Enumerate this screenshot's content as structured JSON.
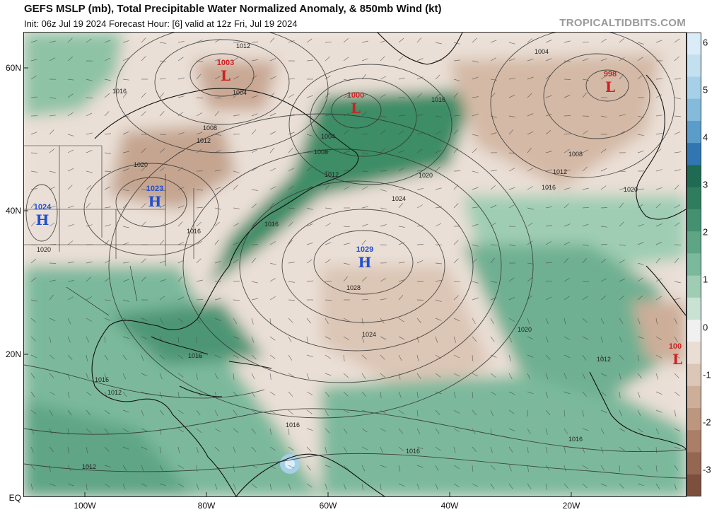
{
  "header": {
    "title": "GEFS MSLP (mb), Total Precipitable Water Normalized Anomaly, & 850mb Wind (kt)",
    "subtitle": "Init: 06z Jul 19 2024   Forecast Hour: [6]   valid at 12z Fri, Jul 19 2024",
    "watermark": "TROPICALTIDBITS.COM"
  },
  "colorbar": {
    "ticks": [
      "6",
      "5",
      "4",
      "3",
      "2",
      "1",
      "0",
      "-1",
      "-2",
      "-3"
    ],
    "colors": [
      "#d9ecf7",
      "#c3e0f0",
      "#a6d0e8",
      "#84bbdc",
      "#5a9dcb",
      "#2f76b3",
      "#1f6a52",
      "#2e7d5e",
      "#449172",
      "#5ea586",
      "#7bb99c",
      "#9fcdb4",
      "#c8e2d4",
      "#f0f0f0",
      "#e9ddd4",
      "#dcc6b6",
      "#cdae99",
      "#bd967f",
      "#ab7e67",
      "#956651",
      "#7d503e"
    ]
  },
  "axes": {
    "lat_labels": [
      "60N",
      "40N",
      "20N",
      "EQ"
    ],
    "lon_labels": [
      "100W",
      "80W",
      "60W",
      "40W",
      "20W"
    ]
  },
  "pressure_centers": [
    {
      "type": "H",
      "label": "H",
      "value": "1024",
      "color": "#1f4fd1"
    },
    {
      "type": "H",
      "label": "H",
      "value": "1023",
      "color": "#1f4fd1"
    },
    {
      "type": "H",
      "label": "H",
      "value": "1029",
      "color": "#1f4fd1"
    },
    {
      "type": "L",
      "label": "L",
      "value": "1003",
      "color": "#cc2222"
    },
    {
      "type": "L",
      "label": "L",
      "value": "1000",
      "color": "#cc2222"
    },
    {
      "type": "L",
      "label": "L",
      "value": "998",
      "color": "#cc2222"
    },
    {
      "type": "L",
      "label": "L",
      "value": "100",
      "color": "#cc2222"
    }
  ],
  "isobar_labels": [
    "1012",
    "1016",
    "1004",
    "1008",
    "1012",
    "1016",
    "1020",
    "1004",
    "1008",
    "1012",
    "1016",
    "1020",
    "1024",
    "1016",
    "1028",
    "1024",
    "1020",
    "1016",
    "1016",
    "1012",
    "1016",
    "1012",
    "1016",
    "1016",
    "1012",
    "1004",
    "1020",
    "1012",
    "1016",
    "1008",
    "1020"
  ]
}
